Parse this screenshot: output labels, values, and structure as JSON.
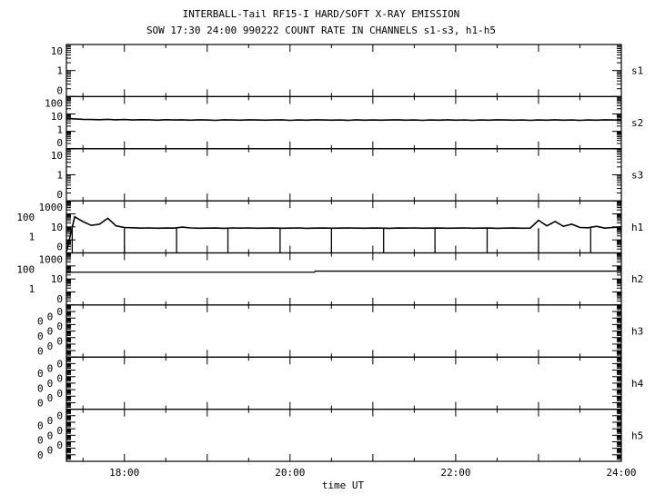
{
  "chart_data": {
    "type": "line",
    "title": "INTERBALL-Tail RF15-I HARD/SOFT X-RAY EMISSION",
    "subtitle": "SOW 17:30 24:00 990222  COUNT RATE IN CHANNELS s1-s3, h1-h5",
    "xlabel": "time UT",
    "xlim": [
      17.3,
      24.0
    ],
    "x_ticks": [
      {
        "value": 18,
        "label": "18:00"
      },
      {
        "value": 20,
        "label": "20:00"
      },
      {
        "value": 22,
        "label": "22:00"
      },
      {
        "value": 24,
        "label": "24:00"
      }
    ],
    "t_start": 17.3,
    "t_step": 0.1,
    "panels": [
      {
        "name": "s1",
        "yscale": "log",
        "ytick_labels": [
          "10",
          "1",
          "0"
        ],
        "values": []
      },
      {
        "name": "s2",
        "yscale": "log",
        "ytick_labels": [
          "100",
          "10",
          "1",
          "0"
        ],
        "values": [
          5.6,
          5.2,
          4.9,
          4.8,
          4.7,
          4.9,
          4.6,
          4.8,
          4.5,
          4.7,
          4.6,
          4.4,
          4.7,
          4.5,
          4.6,
          4.4,
          4.6,
          4.5,
          4.3,
          4.6,
          4.5,
          4.4,
          4.6,
          4.5,
          4.4,
          4.5,
          4.6,
          4.3,
          4.5,
          4.4,
          4.6,
          4.5,
          4.4,
          4.5,
          4.3,
          4.6,
          4.4,
          4.5,
          4.4,
          4.5,
          4.6,
          4.4,
          4.5,
          4.3,
          4.5,
          4.4,
          4.6,
          4.4,
          4.5,
          4.3,
          4.5,
          4.4,
          4.6,
          4.5,
          4.4,
          4.5,
          4.3,
          4.5,
          4.4,
          4.6,
          4.4,
          4.5,
          4.3,
          4.5,
          4.4,
          4.6,
          4.5,
          4.4
        ]
      },
      {
        "name": "s3",
        "yscale": "log",
        "ytick_labels": [
          "10",
          "1",
          "0"
        ],
        "values": []
      },
      {
        "name": "h1",
        "yscale": "log",
        "ytick_labels": [
          "1000",
          "100",
          "10",
          "1",
          "0"
        ],
        "values": [
          0,
          60,
          25,
          13,
          16,
          45,
          12,
          9,
          8.5,
          8,
          8.2,
          7.9,
          8.1,
          8,
          9.5,
          8.2,
          7.9,
          8,
          8.1,
          7.8,
          8.2,
          8,
          8.3,
          7.9,
          8,
          8.1,
          7.9,
          8,
          8.2,
          7.8,
          8,
          8.1,
          7.9,
          8,
          8.2,
          8,
          7.9,
          8.1,
          8,
          7.8,
          8.1,
          8,
          8.2,
          7.9,
          8,
          8.1,
          7.9,
          8,
          8.2,
          7.9,
          8,
          8.1,
          7.8,
          8,
          8.1,
          7.9,
          8,
          32,
          12,
          26,
          11,
          16,
          9,
          8.5,
          11,
          8,
          9,
          10
        ],
        "dropouts": [
          17.37,
          18.0,
          18.63,
          19.25,
          19.88,
          20.5,
          21.13,
          21.75,
          22.38,
          23.0,
          23.63
        ]
      },
      {
        "name": "h2",
        "yscale": "log",
        "ytick_labels": [
          "1000",
          "100",
          "10",
          "1",
          "0"
        ],
        "segments": [
          {
            "from": 17.3,
            "to": 20.3,
            "value": 33
          },
          {
            "from": 20.3,
            "to": 24.0,
            "value": 40
          }
        ]
      },
      {
        "name": "h3",
        "yscale": "linear",
        "ytick_labels": [
          "0",
          "0",
          "0",
          "0",
          "0",
          "0",
          "0",
          "0",
          "0"
        ],
        "values": []
      },
      {
        "name": "h4",
        "yscale": "linear",
        "ytick_labels": [
          "0",
          "0",
          "0",
          "0",
          "0",
          "0",
          "0",
          "0",
          "0"
        ],
        "values": []
      },
      {
        "name": "h5",
        "yscale": "linear",
        "ytick_labels": [
          "0",
          "0",
          "0",
          "0",
          "0",
          "0",
          "0",
          "0",
          "0"
        ],
        "values": []
      }
    ]
  }
}
